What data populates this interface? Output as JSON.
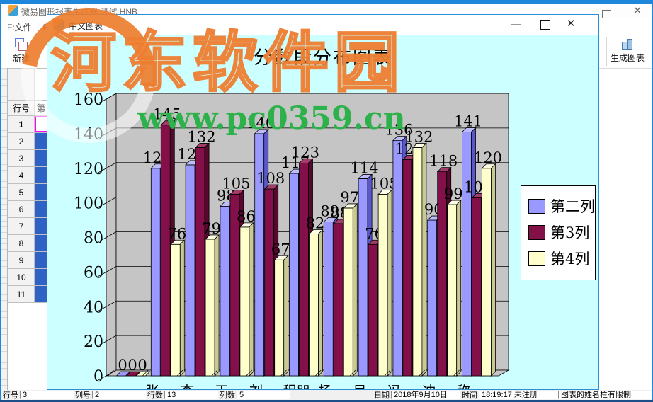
{
  "main_window": {
    "title": "微易图形报表生成器:测试 HNB",
    "menu": [
      {
        "label": "F:文件"
      },
      {
        "label": "E:"
      }
    ],
    "toolbar": {
      "new_label": "新建",
      "generate_label": "生成图表"
    },
    "controls": {
      "maximize": "",
      "close": "×"
    }
  },
  "chart_window": {
    "title": "中文图表",
    "controls": {
      "minimize": "",
      "maximize": "",
      "close": "×"
    }
  },
  "table": {
    "row_header": "行号",
    "col_header": "第",
    "rows": [
      "1",
      "2",
      "3",
      "4",
      "5",
      "6",
      "7",
      "8",
      "9",
      "10",
      "11"
    ]
  },
  "status_bar": {
    "fields": [
      {
        "label": "行号",
        "value": "3",
        "width": 76
      },
      {
        "label": "列号",
        "value": "2",
        "width": 76
      },
      {
        "label": "行数",
        "value": "13",
        "width": 76
      },
      {
        "label": "列数",
        "value": "5",
        "width": 76
      }
    ],
    "right_fields": [
      {
        "label": "日期",
        "value": "2018年9月10日",
        "width": 98
      },
      {
        "label": "时间",
        "value": "18:19:17 未注册",
        "width": 112
      }
    ],
    "message": "图表的姓名栏有限制"
  },
  "watermark": {
    "site_name": "河东软件园",
    "site_url": "www.pc0359.cn"
  },
  "chart_data": {
    "type": "bar",
    "title": "分数段分布图表",
    "categories": [
      "w",
      "张w",
      "李w",
      "王w",
      "刘w",
      "程朋",
      "杨w",
      "吴w",
      "冯w",
      "冲w",
      "称w"
    ],
    "series": [
      {
        "name": "第二列",
        "color": "#9999FF",
        "side_color": "#5A58C8",
        "top_color": "#BCBCFA",
        "values": [
          0,
          120,
          122,
          98,
          140,
          117,
          89,
          114,
          136,
          90,
          141
        ]
      },
      {
        "name": "第3列",
        "color": "#84104A",
        "side_color": "#56082E",
        "top_color": "#A43C6A",
        "values": [
          0,
          145,
          132,
          105,
          108,
          123,
          88,
          76,
          125,
          118,
          103
        ]
      },
      {
        "name": "第4列",
        "color": "#FFFFCC",
        "side_color": "#C9C996",
        "top_color": "#FFFFE6",
        "values": [
          0,
          76,
          79,
          86,
          67,
          82,
          97,
          105,
          132,
          99,
          120
        ]
      }
    ],
    "ylim": [
      0,
      160
    ],
    "ytick_step": 20,
    "value_labels": true,
    "grid": true,
    "legend_position": "right",
    "background": "#CCFFFF",
    "wall_color": "#C5C5C5"
  }
}
